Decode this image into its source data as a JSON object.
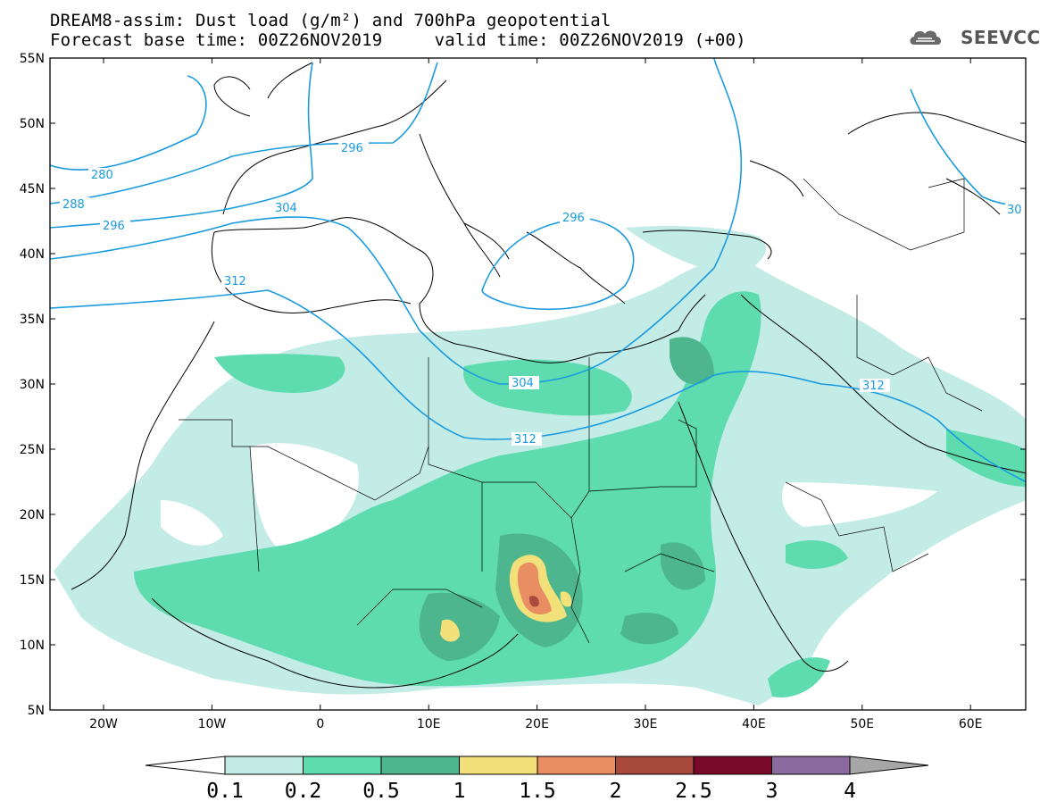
{
  "title": {
    "line1": "DREAM8-assim: Dust load (g/m²) and 700hPa geopotential",
    "line2": "Forecast base time: 00Z26NOV2019     valid time: 00Z26NOV2019 (+00)"
  },
  "logo": {
    "text": "SEEVCCC",
    "icon": "cloud-logo-icon"
  },
  "map": {
    "lat_labels": [
      "55N",
      "50N",
      "45N",
      "40N",
      "35N",
      "30N",
      "25N",
      "20N",
      "15N",
      "10N",
      "5N"
    ],
    "lon_labels": [
      "20W",
      "10W",
      "0",
      "10E",
      "20E",
      "30E",
      "40E",
      "50E",
      "60E"
    ],
    "isoline_labels": [
      "280",
      "288",
      "296",
      "296",
      "296",
      "304",
      "304",
      "312",
      "312",
      "312",
      "30"
    ],
    "isoline_color": "#1a9be0"
  },
  "colorbar": {
    "labels": [
      "0.1",
      "0.2",
      "0.5",
      "1",
      "1.5",
      "2",
      "2.5",
      "3",
      "4"
    ],
    "colors": [
      "#ffffff",
      "#c4ece6",
      "#5edcb0",
      "#4db68f",
      "#f2e07a",
      "#e98d63",
      "#a84a3d",
      "#7a0a2a",
      "#8b6aa0",
      "#a6a6a6"
    ]
  }
}
